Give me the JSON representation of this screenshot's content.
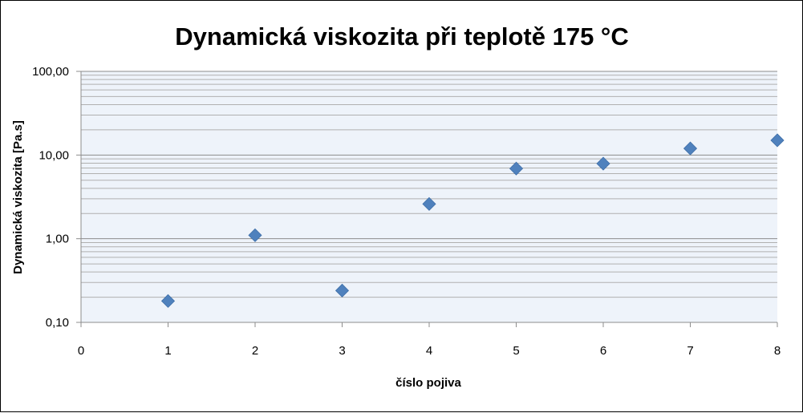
{
  "chart_data": {
    "type": "scatter",
    "title": "Dynamická viskozita při  teplotě 175 °C",
    "xlabel": "číslo pojiva",
    "ylabel": "Dynamická viskozita  [Pa.s]",
    "xlim": [
      0,
      8
    ],
    "ylim": [
      0.1,
      100
    ],
    "yscale": "log",
    "x_ticks": [
      "0",
      "1",
      "2",
      "3",
      "4",
      "5",
      "6",
      "7",
      "8"
    ],
    "y_ticks": [
      {
        "value": 100,
        "label": "100,00"
      },
      {
        "value": 10,
        "label": "10,00"
      },
      {
        "value": 1,
        "label": "1,00"
      },
      {
        "value": 0.1,
        "label": "0,10"
      }
    ],
    "grid": true,
    "legend": "none",
    "marker": "diamond",
    "colors": {
      "marker": "#4f81bd",
      "plot_background": "#eef3fa",
      "grid_major": "#8c8c8c",
      "grid_minor": "#b0b0b0"
    },
    "series": [
      {
        "x": [
          1,
          2,
          3,
          4,
          5,
          6,
          7,
          8
        ],
        "y": [
          0.18,
          1.1,
          0.24,
          2.6,
          6.9,
          7.9,
          12,
          15
        ]
      }
    ]
  }
}
